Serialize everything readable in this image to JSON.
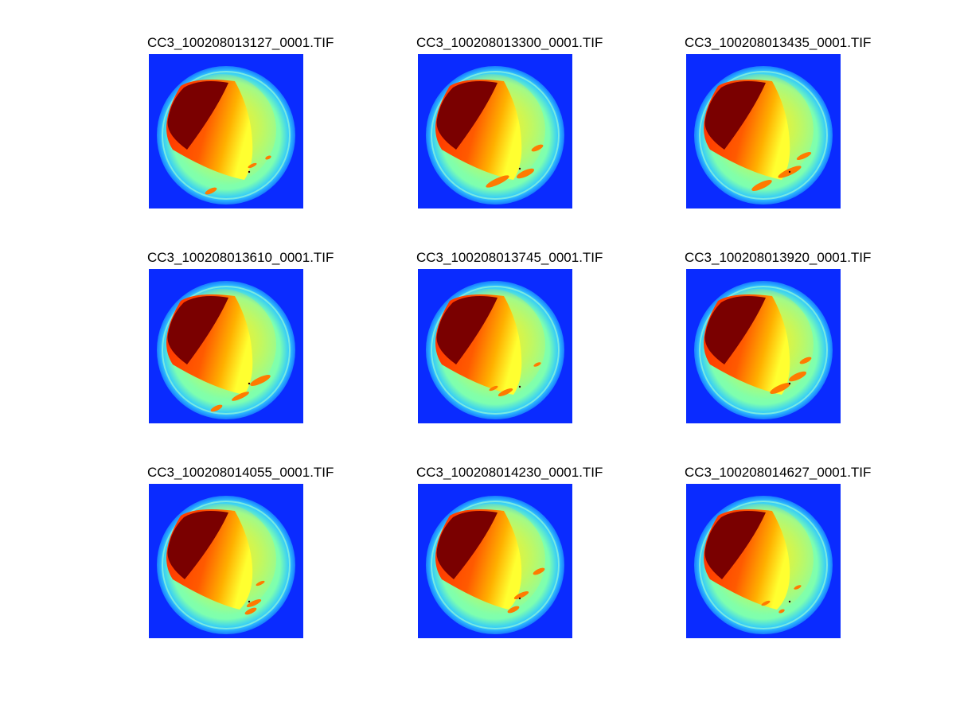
{
  "colors": {
    "background": "#0a2bff",
    "rim_outer": "#2ec8ff",
    "rim_inner": "#7dffb0",
    "hot_core": "#7a0000"
  },
  "panels": [
    {
      "title": "CC3_100208013127_0001.TIF"
    },
    {
      "title": "CC3_100208013300_0001.TIF"
    },
    {
      "title": "CC3_100208013435_0001.TIF"
    },
    {
      "title": "CC3_100208013610_0001.TIF"
    },
    {
      "title": "CC3_100208013745_0001.TIF"
    },
    {
      "title": "CC3_100208013920_0001.TIF"
    },
    {
      "title": "CC3_100208014055_0001.TIF"
    },
    {
      "title": "CC3_100208014230_0001.TIF"
    },
    {
      "title": "CC3_100208014627_0001.TIF"
    }
  ]
}
